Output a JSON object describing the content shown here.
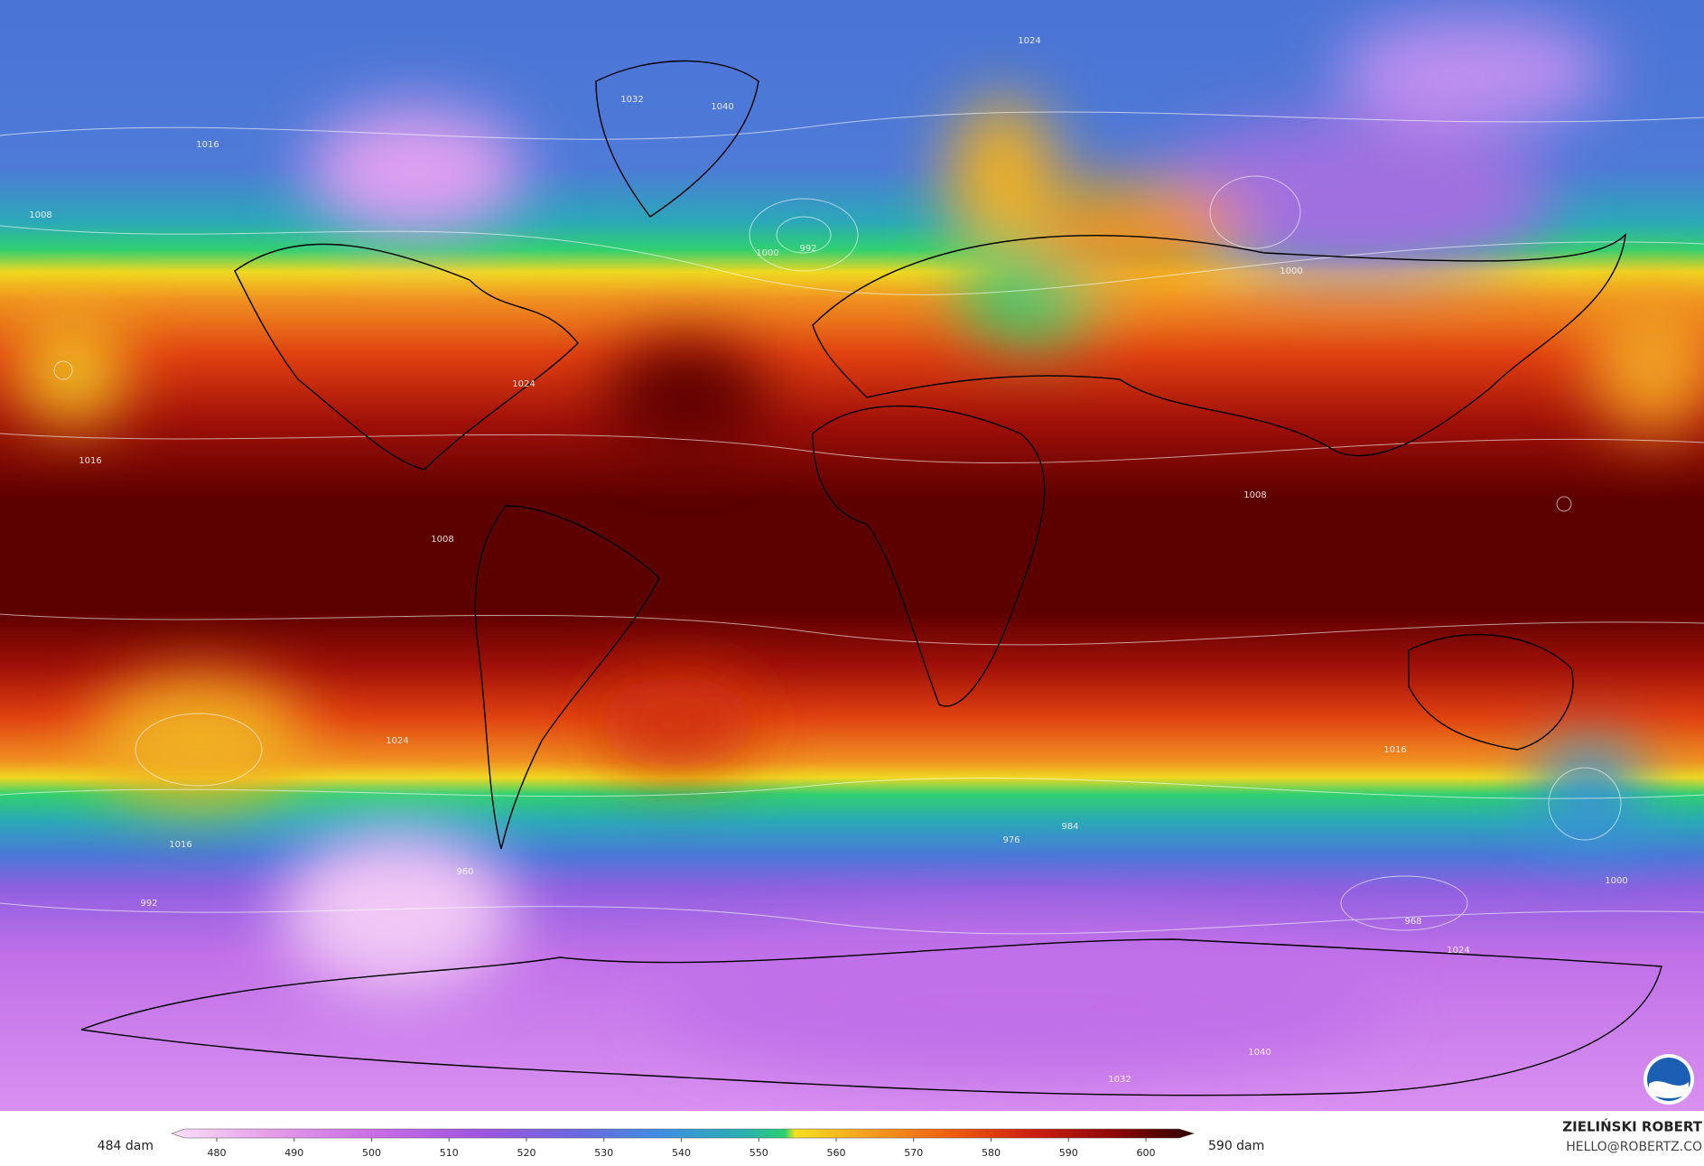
{
  "colorbar": {
    "min_label": "484 dam",
    "max_label": "590 dam",
    "ticks": [
      480,
      490,
      500,
      510,
      520,
      530,
      540,
      550,
      560,
      570,
      580,
      590,
      600
    ]
  },
  "credit": {
    "name": "ZIELIŃSKI ROBERT",
    "contact": "HELLO@ROBERTZ.CO"
  },
  "contour_labels": [
    "1024",
    "1016",
    "1008",
    "1040",
    "1032",
    "992",
    "1000",
    "1024",
    "1016",
    "1008",
    "1008",
    "1000",
    "1024",
    "1016",
    "984",
    "976",
    "968",
    "960",
    "992",
    "1024",
    "1032",
    "1040",
    "1016",
    "1000"
  ]
}
